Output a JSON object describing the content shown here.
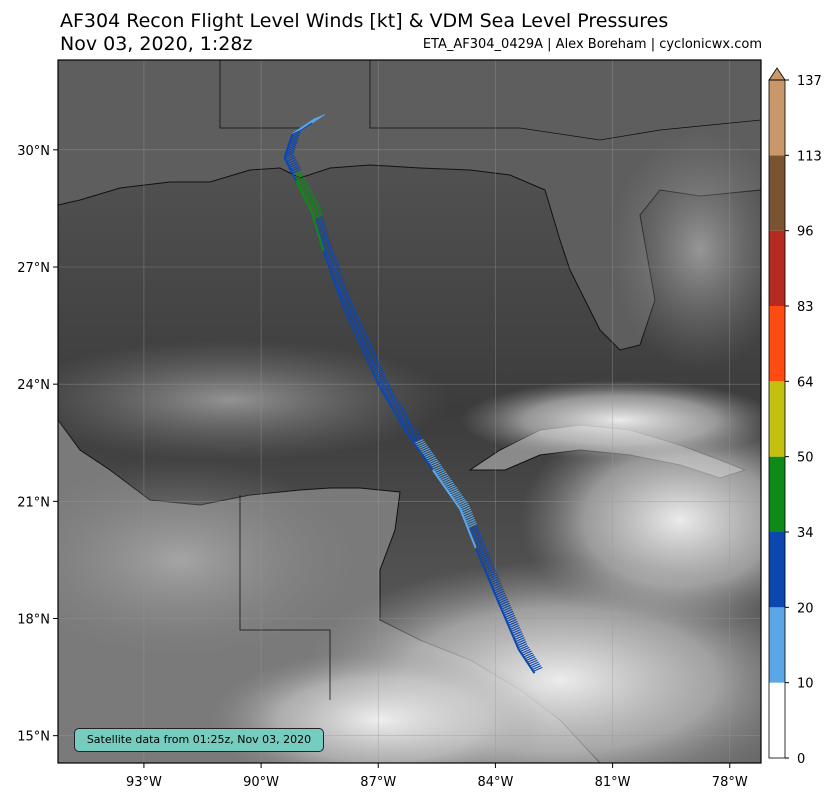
{
  "header": {
    "title": "AF304 Recon Flight Level Winds [kt] & VDM Sea Level Pressures",
    "datetime": "Nov 03, 2020, 1:28z",
    "credit": "ETA_AF304_0429A | Alex Boreham | cyclonicwx.com"
  },
  "map": {
    "lat_labels": [
      "30°N",
      "27°N",
      "24°N",
      "21°N",
      "18°N",
      "15°N"
    ],
    "lon_labels": [
      "93°W",
      "90°W",
      "87°W",
      "84°W",
      "81°W",
      "78°W"
    ],
    "lon_range": [
      -95.2,
      -77.2
    ],
    "lat_range": [
      14.3,
      32.3
    ],
    "satellite_note": "Satellite data from 01:25z, Nov 03, 2020"
  },
  "colorbar": {
    "levels": [
      0,
      10,
      20,
      34,
      50,
      64,
      83,
      96,
      113,
      137
    ],
    "colors": [
      "#ffffff",
      "#5aa6e6",
      "#0c47b0",
      "#0e8a18",
      "#c3c010",
      "#ff4a12",
      "#b72a22",
      "#7a5432",
      "#c8976a"
    ]
  },
  "flight_track": [
    {
      "lon": -88.6,
      "lat": 30.8,
      "wind_kt": 18
    },
    {
      "lon": -89.2,
      "lat": 30.4,
      "wind_kt": 22
    },
    {
      "lon": -89.4,
      "lat": 29.8,
      "wind_kt": 25
    },
    {
      "lon": -89.1,
      "lat": 29.2,
      "wind_kt": 38
    },
    {
      "lon": -88.7,
      "lat": 28.4,
      "wind_kt": 36
    },
    {
      "lon": -88.4,
      "lat": 27.4,
      "wind_kt": 26
    },
    {
      "lon": -87.9,
      "lat": 26.0,
      "wind_kt": 25
    },
    {
      "lon": -87.0,
      "lat": 24.0,
      "wind_kt": 24
    },
    {
      "lon": -86.3,
      "lat": 22.8,
      "wind_kt": 22
    },
    {
      "lon": -85.6,
      "lat": 21.8,
      "wind_kt": 15
    },
    {
      "lon": -84.9,
      "lat": 20.8,
      "wind_kt": 16
    },
    {
      "lon": -84.5,
      "lat": 19.8,
      "wind_kt": 24
    },
    {
      "lon": -84.0,
      "lat": 18.6,
      "wind_kt": 26
    },
    {
      "lon": -83.4,
      "lat": 17.2,
      "wind_kt": 28
    },
    {
      "lon": -83.0,
      "lat": 16.6,
      "wind_kt": 24
    }
  ]
}
